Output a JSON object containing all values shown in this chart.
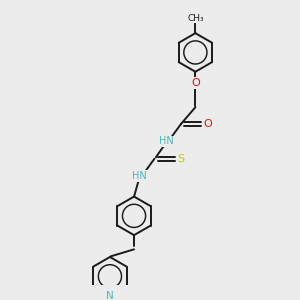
{
  "background_color": "#ececec",
  "bond_color": "#1a1a1a",
  "bond_width": 1.4,
  "atom_colors": {
    "N": "#4db8b8",
    "O": "#e81010",
    "S": "#c8c800",
    "C": "#1a1a1a"
  },
  "font_size": 7.0,
  "fig_size": [
    3.0,
    3.0
  ],
  "dpi": 100,
  "xlim": [
    0,
    10
  ],
  "ylim": [
    0,
    10
  ]
}
